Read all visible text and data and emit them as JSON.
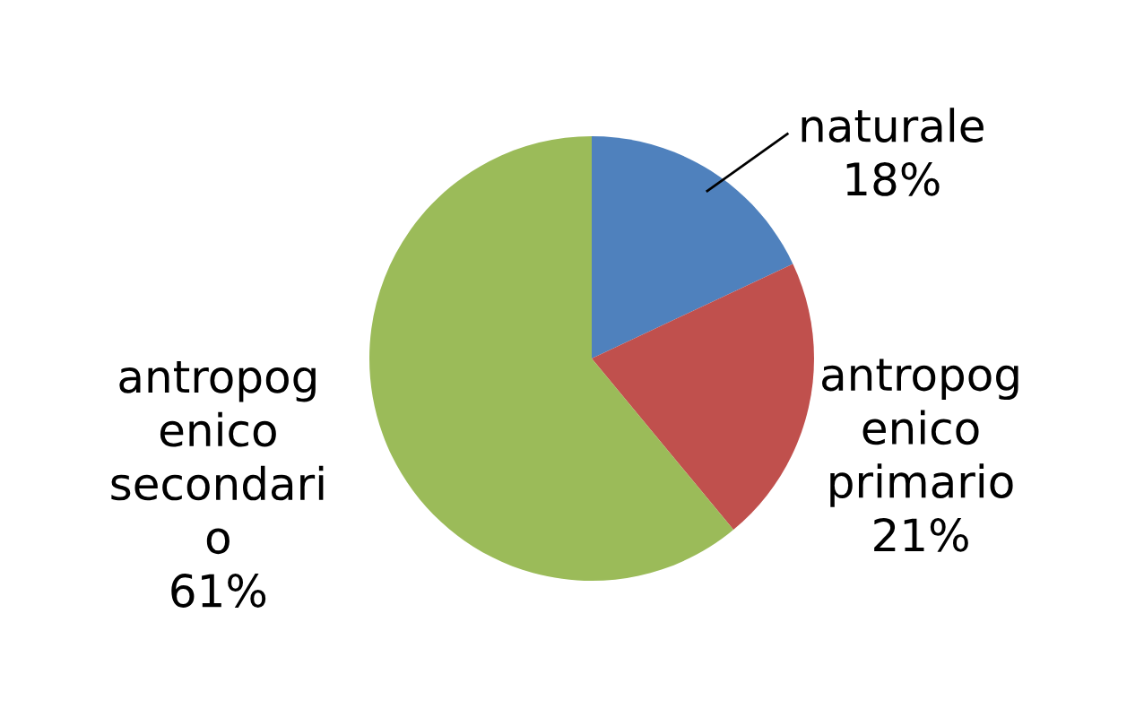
{
  "chart_data": {
    "type": "pie",
    "categories": [
      "naturale",
      "antropog\nenico\nprimario",
      "antropog\nenico\nsecondari\no"
    ],
    "values": [
      18,
      21,
      61
    ],
    "colors": [
      "#4f81bd",
      "#c0504d",
      "#9bbb59"
    ],
    "value_labels": [
      "18%",
      "21%",
      "61%"
    ],
    "legend": false
  }
}
